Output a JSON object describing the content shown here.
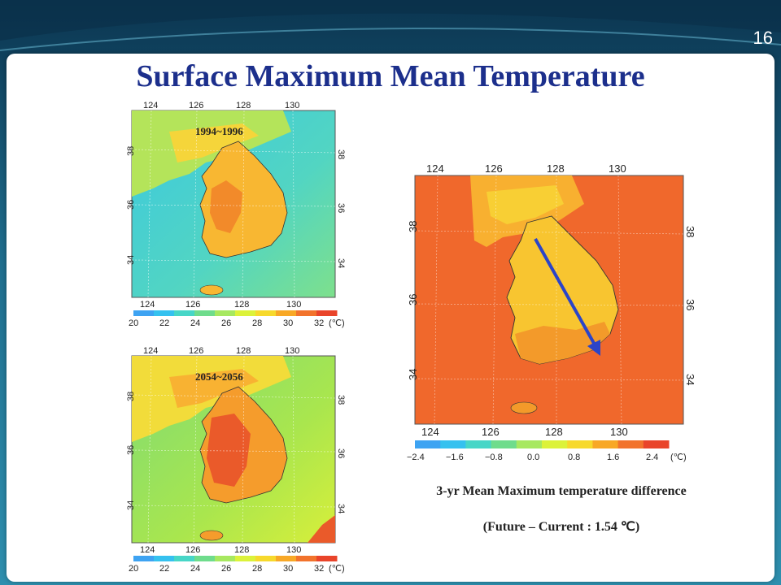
{
  "slide": {
    "number": "16",
    "title": "Surface Maximum Mean Temperature"
  },
  "maps": {
    "current": {
      "period": "1994~1996",
      "lon_ticks": [
        "124",
        "126",
        "128",
        "130"
      ],
      "lat_ticks": [
        "38",
        "36",
        "34"
      ],
      "colorbar_ticks": [
        "20",
        "22",
        "24",
        "26",
        "28",
        "30",
        "32"
      ],
      "unit": "(℃)"
    },
    "future": {
      "period": "2054~2056",
      "lon_ticks": [
        "124",
        "126",
        "128",
        "130"
      ],
      "lat_ticks": [
        "38",
        "36",
        "34"
      ],
      "colorbar_ticks": [
        "20",
        "22",
        "24",
        "26",
        "28",
        "30",
        "32"
      ],
      "unit": "(℃)"
    },
    "difference": {
      "lon_ticks": [
        "124",
        "126",
        "128",
        "130"
      ],
      "lat_ticks": [
        "38",
        "36",
        "34"
      ],
      "colorbar_ticks": [
        "−2.4",
        "−1.6",
        "−0.8",
        "0.0",
        "0.8",
        "1.6",
        "2.4"
      ],
      "unit": "(℃)"
    }
  },
  "caption": {
    "line1": "3-yr Mean Maximum temperature difference",
    "line2": "(Future – Current : 1.54 ℃)"
  },
  "colors": {
    "title": "#1c2f8c",
    "arrow": "#2b44c8",
    "colorbar_abs": [
      "#3ea3f2",
      "#35c1ef",
      "#47d6c7",
      "#6fdc8c",
      "#a7e860",
      "#dcf23a",
      "#f7d92c",
      "#f8a826",
      "#f2732c",
      "#e9442a"
    ],
    "colorbar_diff": [
      "#3ea3f2",
      "#35c1ef",
      "#47d6c7",
      "#6fdc8c",
      "#a7e860",
      "#dcf23a",
      "#f7d92c",
      "#f8a826",
      "#f2732c",
      "#e9442a"
    ]
  }
}
